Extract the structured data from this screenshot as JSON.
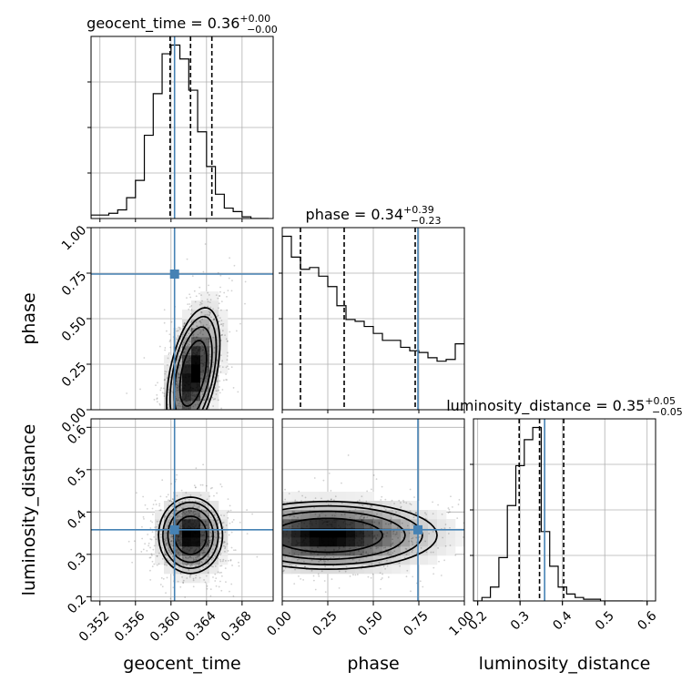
{
  "chart_data": {
    "type": "corner",
    "parameters": [
      {
        "name": "geocent_time",
        "label": "geocent_time",
        "range": [
          0.351,
          0.3715
        ],
        "ticks": [
          "0.352",
          "0.356",
          "0.360",
          "0.364",
          "0.368"
        ],
        "tick_values": [
          0.352,
          0.356,
          0.36,
          0.364,
          0.368
        ],
        "truth": 0.3604,
        "quantiles": [
          0.3599,
          0.3622,
          0.3646
        ],
        "title_prefix": "geocent_time = 0.36",
        "title_upper": "+0.00",
        "title_lower": "−0.00",
        "hist_edges_start": 0.351,
        "hist_bin": 0.001,
        "hist_counts": [
          2,
          2,
          3,
          5,
          12,
          22,
          48,
          72,
          95,
          100,
          92,
          74,
          50,
          30,
          14,
          6,
          4,
          1,
          0,
          0
        ]
      },
      {
        "name": "phase",
        "label": "phase",
        "range": [
          0.0,
          1.0
        ],
        "ticks": [
          "0.00",
          "0.25",
          "0.50",
          "0.75",
          "1.00"
        ],
        "tick_values": [
          0.0,
          0.25,
          0.5,
          0.75,
          1.0
        ],
        "truth": 0.745,
        "quantiles": [
          0.1,
          0.34,
          0.73
        ],
        "title_prefix": "phase = 0.34",
        "title_upper": "+0.39",
        "title_lower": "−0.23",
        "hist_edges_start": 0.0,
        "hist_bin": 0.05,
        "hist_counts": [
          100,
          88,
          81,
          82,
          77,
          71,
          60,
          52,
          51,
          48,
          44,
          40,
          40,
          36,
          34,
          33,
          30,
          28,
          29,
          38
        ]
      },
      {
        "name": "luminosity_distance",
        "label": "luminosity_distance",
        "range": [
          0.19,
          0.62
        ],
        "ticks": [
          "0.2",
          "0.3",
          "0.4",
          "0.5",
          "0.6"
        ],
        "tick_values": [
          0.2,
          0.3,
          0.4,
          0.5,
          0.6
        ],
        "truth": 0.358,
        "quantiles": [
          0.298,
          0.346,
          0.403
        ],
        "title_prefix": "luminosity_distance = 0.35",
        "title_upper": "+0.05",
        "title_lower": "−0.05",
        "hist_edges_start": 0.19,
        "hist_bin": 0.02,
        "hist_counts": [
          0,
          2,
          8,
          25,
          55,
          78,
          93,
          100,
          40,
          20,
          8,
          4,
          2,
          1,
          1,
          0,
          0,
          0,
          0,
          0
        ]
      }
    ],
    "truth_color": "#4682b4",
    "joint_2d": [
      {
        "x": "geocent_time",
        "y": "phase",
        "mean": [
          0.3625,
          0.2
        ],
        "sd": [
          0.0015,
          0.18
        ],
        "corr": 0.45
      },
      {
        "x": "geocent_time",
        "y": "luminosity_distance",
        "mean": [
          0.3622,
          0.345
        ],
        "sd": [
          0.0018,
          0.045
        ],
        "corr": 0.0
      },
      {
        "x": "phase",
        "y": "luminosity_distance",
        "mean": [
          0.25,
          0.345
        ],
        "sd": [
          0.3,
          0.04
        ],
        "corr": 0.0
      }
    ]
  }
}
